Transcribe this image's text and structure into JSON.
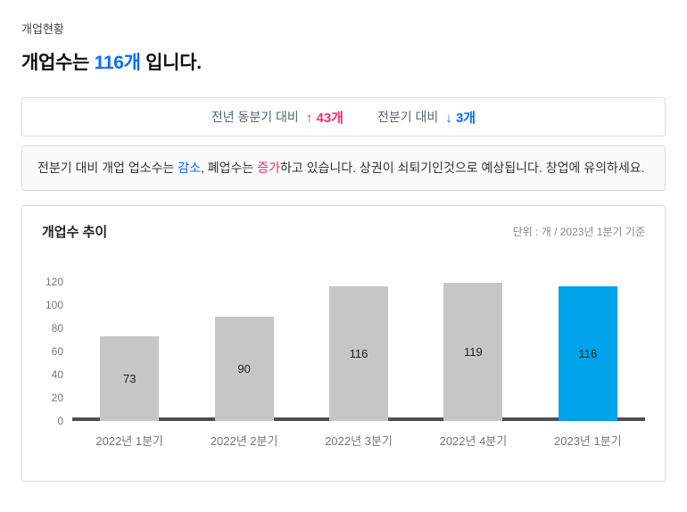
{
  "header": {
    "section_label": "개업현황",
    "title_prefix": "개업수는 ",
    "title_value": "116개",
    "title_suffix": " 입니다."
  },
  "comparison": {
    "yoy_label": "전년 동분기 대비",
    "yoy_arrow": "↑",
    "yoy_value": "43개",
    "qoq_label": "전분기 대비",
    "qoq_arrow": "↓",
    "qoq_value": "3개"
  },
  "summary": {
    "part1": "전분기 대비 개업 업소수는 ",
    "decrease_word": "감소",
    "part2": ", 폐업수는 ",
    "increase_word": "증가",
    "part3": "하고 있습니다. 상권이 쇠퇴기인것으로 예상됩니다. 창업에 유의하세요."
  },
  "chart": {
    "title": "개업수 추이",
    "unit_note": "단위 : 개 / 2023년 1분기 기준"
  },
  "chart_data": {
    "type": "bar",
    "title": "개업수 추이",
    "categories": [
      "2022년 1분기",
      "2022년 2분기",
      "2022년 3분기",
      "2022년 4분기",
      "2023년 1분기"
    ],
    "values": [
      73,
      90,
      116,
      119,
      116
    ],
    "highlight_index": 4,
    "ylim": [
      0,
      120
    ],
    "yticks": [
      0,
      20,
      40,
      60,
      80,
      100,
      120
    ],
    "grid": false,
    "legend": false,
    "unit": "개",
    "basis": "2023년 1분기 기준"
  },
  "colors": {
    "accent_blue": "#0a6cff",
    "accent_pink": "#ee2f6e",
    "bar_gray": "#c6c6c6",
    "bar_highlight": "#00a2e9",
    "baseline": "#4f4f4f"
  }
}
